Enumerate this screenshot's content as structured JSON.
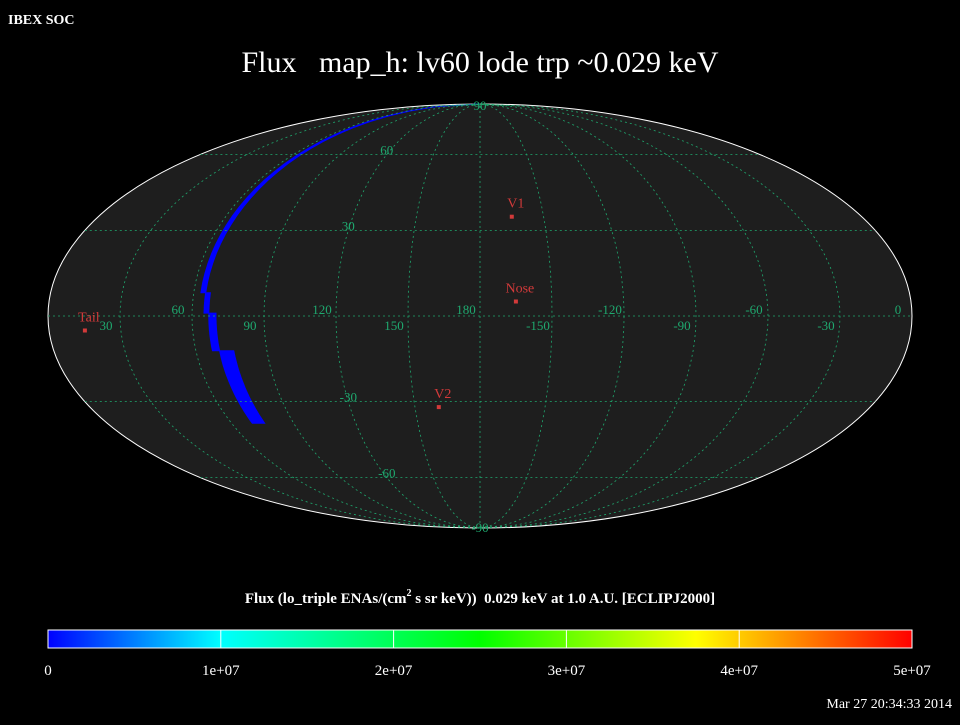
{
  "header": {
    "source_label": "IBEX SOC",
    "timestamp": "Mar 27 20:34:33 2014"
  },
  "chart_data": {
    "type": "heatmap",
    "projection": "Mollweide (all-sky)",
    "title": "Flux   map_h: lv60 lode trp ~0.029 keV",
    "colorbar": {
      "label_parts": [
        "Flux (lo_triple ENAs/(cm",
        "2",
        " s sr keV))  0.029 keV at 1.0 A.U. [ECLIPJ2000]"
      ],
      "min": 0,
      "max": 50000000,
      "ticks": [
        {
          "value": 0,
          "label": "0"
        },
        {
          "value": 10000000,
          "label": "1e+07"
        },
        {
          "value": 20000000,
          "label": "2e+07"
        },
        {
          "value": 30000000,
          "label": "3e+07"
        },
        {
          "value": 40000000,
          "label": "4e+07"
        },
        {
          "value": 50000000,
          "label": "5e+07"
        }
      ],
      "colormap": [
        "#0000ff",
        "#00ffff",
        "#00ff00",
        "#ffff00",
        "#ff0000"
      ]
    },
    "grid": {
      "on": true,
      "center_longitude": -90,
      "longitude_labels": [
        {
          "lon": 30,
          "label": "60",
          "lat": 0
        },
        {
          "lon": 60,
          "label": "30",
          "lat": 0
        },
        {
          "lon": 90,
          "label": "0",
          "lat": 0
        },
        {
          "lon": 120,
          "label": "-30",
          "lat": 0
        },
        {
          "lon": 150,
          "label": "-60",
          "lat": 0
        },
        {
          "lon": 180,
          "label": "-90",
          "lat": 0
        },
        {
          "lon": 210,
          "label": "-120",
          "lat": 0
        },
        {
          "lon": 240,
          "label": "-150",
          "lat": 0
        },
        {
          "lon": 270,
          "label": "180",
          "lat": 0
        },
        {
          "lon": 300,
          "label": "150",
          "lat": 0
        },
        {
          "lon": 330,
          "label": "120",
          "lat": 0
        },
        {
          "lon": 360,
          "label": "90",
          "lat": 0
        }
      ],
      "latitude_labels": [
        {
          "lat": 90,
          "label": "90"
        },
        {
          "lat": 60,
          "label": "60"
        },
        {
          "lat": 30,
          "label": "30"
        },
        {
          "lat": -30,
          "label": "-30"
        },
        {
          "lat": -60,
          "label": "-60"
        },
        {
          "lat": -90,
          "label": "-90"
        }
      ]
    },
    "markers": [
      {
        "name": "V1",
        "ecl_lon": 255,
        "ecl_lat": 35
      },
      {
        "name": "Nose",
        "ecl_lon": 255,
        "ecl_lat": 5
      },
      {
        "name": "V2",
        "ecl_lon": 289,
        "ecl_lat": -32
      },
      {
        "name": "Tail",
        "ecl_lon": 75,
        "ecl_lat": -5
      }
    ],
    "data_region": {
      "description": "single swath of observed pixels; all other sky unobserved",
      "flux_value": 0,
      "columns": [
        {
          "lon_from": 115,
          "lon_to": 117,
          "lat_from": 8,
          "lat_to": 90
        },
        {
          "lon_from": 113,
          "lon_to": 115,
          "lat_from": 1,
          "lat_to": 8
        },
        {
          "lon_from": 110,
          "lon_to": 113,
          "lat_from": -12,
          "lat_to": 1
        },
        {
          "lon_from": 104,
          "lon_to": 110,
          "lat_from": -38,
          "lat_to": -12
        }
      ]
    }
  }
}
